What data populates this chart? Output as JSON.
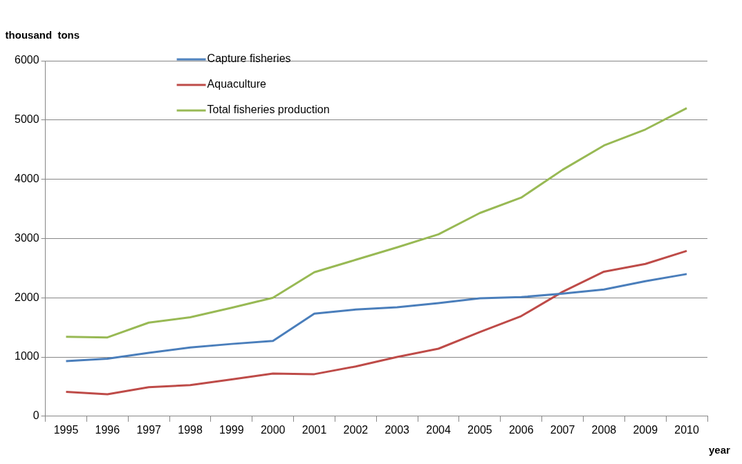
{
  "chart_data": {
    "type": "line",
    "ylabel": "thousand  tons",
    "xlabel": "year",
    "categories": [
      "1995",
      "1996",
      "1997",
      "1998",
      "1999",
      "2000",
      "2001",
      "2002",
      "2003",
      "2004",
      "2005",
      "2006",
      "2007",
      "2008",
      "2009",
      "2010"
    ],
    "series": [
      {
        "name": "Capture fisheries",
        "color": "#4a7ebb",
        "values": [
          930,
          970,
          1070,
          1160,
          1220,
          1270,
          1730,
          1800,
          1840,
          1910,
          1990,
          2010,
          2070,
          2140,
          2280,
          2400
        ]
      },
      {
        "name": "Aquaculture",
        "color": "#be4b48",
        "values": [
          410,
          370,
          490,
          525,
          620,
          720,
          710,
          840,
          1000,
          1140,
          1420,
          1690,
          2100,
          2440,
          2570,
          2790
        ]
      },
      {
        "name": "Total fisheries production",
        "color": "#98b954",
        "values": [
          1340,
          1330,
          1580,
          1670,
          1830,
          2000,
          2430,
          2640,
          2850,
          3070,
          3430,
          3690,
          4160,
          4570,
          4840,
          5200
        ]
      }
    ],
    "ylim": [
      0,
      6000
    ],
    "yticks": [
      0,
      1000,
      2000,
      3000,
      4000,
      5000,
      6000
    ],
    "grid": "y",
    "legend": "top left",
    "marker": "none",
    "line_style": "solid"
  }
}
